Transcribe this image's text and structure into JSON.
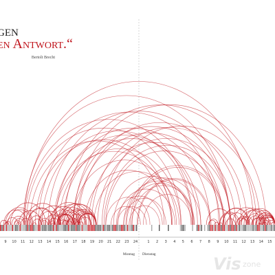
{
  "quote": {
    "line1": "gen",
    "line2": "en Antwort.“",
    "author": "Bertolt Brecht"
  },
  "axis": {
    "day1_hours": [
      9,
      10,
      11,
      12,
      13,
      14,
      15,
      16,
      17,
      18,
      19,
      20,
      21,
      22,
      23,
      24
    ],
    "day2_hours": [
      1,
      2,
      3,
      4,
      5,
      6,
      7,
      8,
      9,
      10,
      11,
      12,
      13,
      14,
      15
    ],
    "day1": "Montag",
    "day2": "Dienstag"
  },
  "watermark": {
    "brand": "Vis",
    "suffix": "zone"
  }
}
